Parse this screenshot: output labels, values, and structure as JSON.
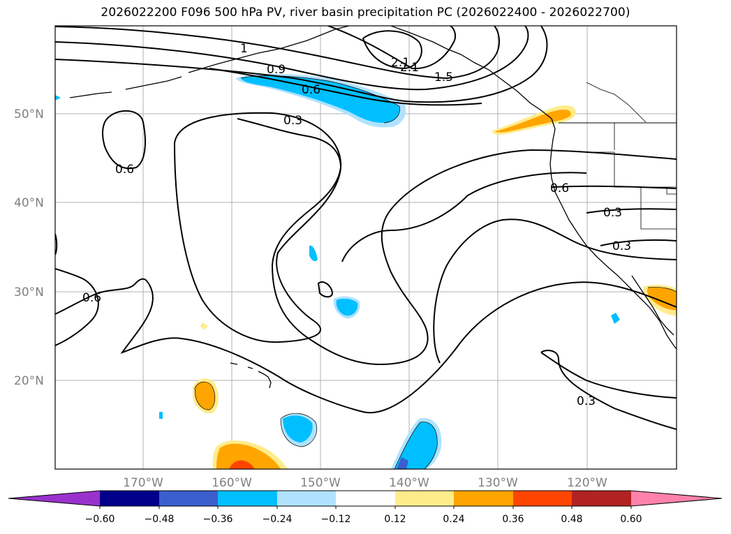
{
  "title": "2026022200 F096 500 hPa PV, river basin precipitation PC (2026022400 - 2026022700)",
  "lat_labels": [
    "50°N",
    "40°N",
    "30°N",
    "20°N"
  ],
  "lon_labels": [
    "170°W",
    "160°W",
    "150°W",
    "140°W",
    "130°W",
    "120°W"
  ],
  "colorbar": {
    "ticks": [
      "−0.60",
      "−0.48",
      "−0.36",
      "−0.24",
      "−0.12",
      "0.12",
      "0.24",
      "0.36",
      "0.48",
      "0.60"
    ],
    "colors": [
      "#9932cc",
      "#00008b",
      "#3a5fcd",
      "#00bfff",
      "#b0e2ff",
      "#ffffff",
      "#ffec8b",
      "#ffa500",
      "#ff4500",
      "#b22222",
      "#ff82ab"
    ]
  },
  "contour_labels": [
    "2.1",
    "2.1",
    "1.5",
    "0.9",
    "0.6",
    "0.3",
    "0.6",
    "0.6",
    "0.6",
    "0.3",
    "0.3",
    "0.3",
    "1"
  ],
  "colors": {
    "land_line": "#000000",
    "grid": "#b0b0b0"
  }
}
